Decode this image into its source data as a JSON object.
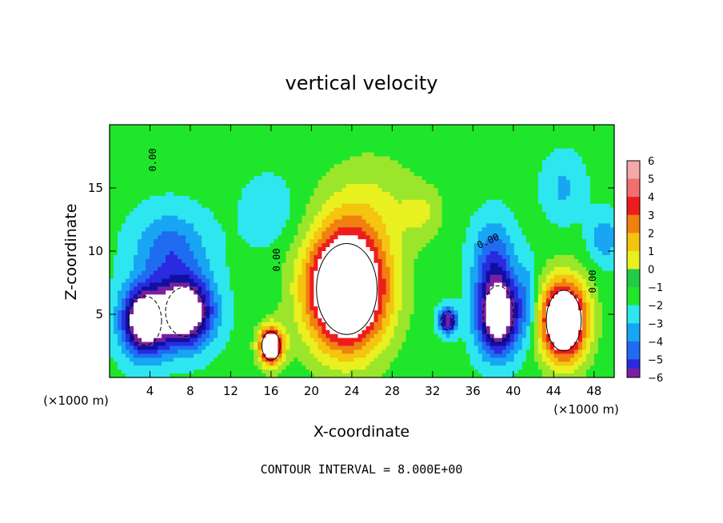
{
  "chart_data": {
    "type": "heatmap",
    "title": "vertical velocity",
    "xlabel": "X-coordinate",
    "ylabel": "Z-coordinate",
    "x_unit_label": "(×1000 m)",
    "x_ticks": [
      4,
      8,
      12,
      16,
      20,
      24,
      28,
      32,
      36,
      40,
      44,
      48
    ],
    "y_ticks": [
      5,
      10,
      15
    ],
    "xlim": [
      0,
      50
    ],
    "ylim": [
      0,
      20
    ],
    "colorbar": {
      "ticks": [
        "6",
        "5",
        "4",
        "3",
        "2",
        "1",
        "0",
        "-1",
        "-2",
        "-3",
        "-4",
        "-5",
        "-6"
      ],
      "range": [
        -6,
        6
      ]
    },
    "contour_labels": [
      "0.00",
      "0.00",
      "0.00",
      "0.00"
    ],
    "footer": "CONTOUR INTERVAL = 8.000E+00",
    "features": [
      {
        "kind": "downdraft",
        "x": 3.5,
        "z": 4.5,
        "sx": 2.2,
        "sz": 2.6,
        "amp": -9
      },
      {
        "kind": "downdraft",
        "x": 7.5,
        "z": 5.2,
        "sx": 2.6,
        "sz": 2.6,
        "amp": -9
      },
      {
        "kind": "downdraft",
        "x": 6.0,
        "z": 10.0,
        "sx": 3.5,
        "sz": 3.0,
        "amp": -3
      },
      {
        "kind": "updraft",
        "x": 16.0,
        "z": 2.5,
        "sx": 1.2,
        "sz": 1.5,
        "amp": 9
      },
      {
        "kind": "updraft",
        "x": 23.5,
        "z": 7.0,
        "sx": 4.0,
        "sz": 4.8,
        "amp": 11
      },
      {
        "kind": "weak-updraft",
        "x": 26.0,
        "z": 14.0,
        "sx": 5.0,
        "sz": 4.0,
        "amp": 1.5
      },
      {
        "kind": "weak-updraft",
        "x": 31.0,
        "z": 13.0,
        "sx": 2.0,
        "sz": 2.0,
        "amp": 1.5
      },
      {
        "kind": "downdraft",
        "x": 33.5,
        "z": 4.5,
        "sx": 0.9,
        "sz": 1.0,
        "amp": -6
      },
      {
        "kind": "downdraft",
        "x": 38.5,
        "z": 5.0,
        "sx": 2.0,
        "sz": 3.0,
        "amp": -9
      },
      {
        "kind": "downdraft",
        "x": 38.0,
        "z": 9.5,
        "sx": 2.0,
        "sz": 3.0,
        "amp": -3
      },
      {
        "kind": "updraft",
        "x": 45.0,
        "z": 4.5,
        "sx": 2.3,
        "sz": 3.2,
        "amp": 10
      },
      {
        "kind": "downdraft",
        "x": 41.5,
        "z": 6.0,
        "sx": 1.0,
        "sz": 3.0,
        "amp": -2
      },
      {
        "kind": "downdraft",
        "x": 49.0,
        "z": 11.0,
        "sx": 1.5,
        "sz": 2.0,
        "amp": -2
      },
      {
        "kind": "downdraft",
        "x": 45.0,
        "z": 15.0,
        "sx": 2.0,
        "sz": 2.5,
        "amp": -1.5
      },
      {
        "kind": "downdraft",
        "x": 16.0,
        "z": 13.0,
        "sx": 3.0,
        "sz": 3.0,
        "amp": -1
      }
    ],
    "palette": [
      "#7a1fa2",
      "#1010a0",
      "#2a2ae0",
      "#1f6cf0",
      "#18a6f4",
      "#2ee6f0",
      "#22cc44",
      "#1fe62a",
      "#9be62a",
      "#e8f020",
      "#f5c40f",
      "#f08010",
      "#ee1d1d",
      "#f07070",
      "#f4a8a8"
    ],
    "grid": false
  }
}
